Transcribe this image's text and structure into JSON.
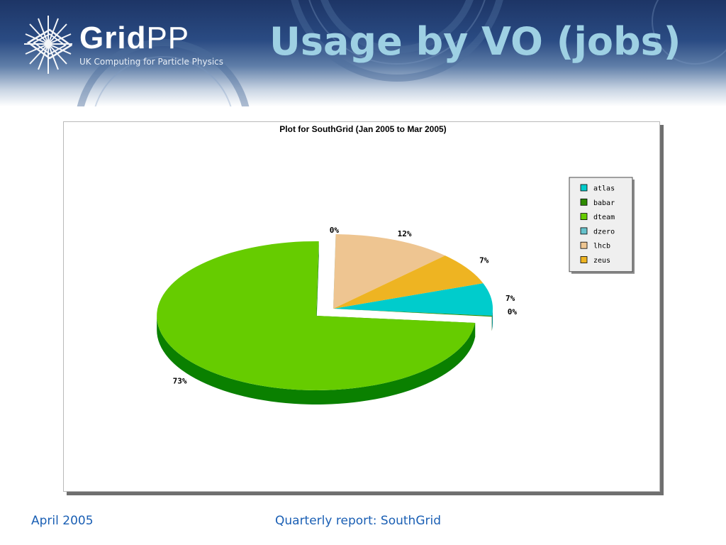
{
  "slide": {
    "title": "Usage by VO (jobs)",
    "brand": {
      "name_bold": "Grid",
      "name_light": "PP",
      "tagline": "UK Computing for Particle Physics"
    },
    "footer": {
      "date": "April 2005",
      "report": "Quarterly report: SouthGrid"
    }
  },
  "colors": {
    "header_dark": "#1d3566",
    "title": "#9ed0e3",
    "footer_text": "#1a5fb4"
  },
  "chart_data": {
    "type": "pie",
    "title": "Plot for SouthGrid (Jan 2005 to Mar 2005)",
    "legend_position": "top-right",
    "slices": [
      {
        "name": "atlas",
        "value": 7,
        "label": "7%",
        "color": "#00cccc",
        "side_color": "#008a8a"
      },
      {
        "name": "babar",
        "value": 0,
        "label": "0%",
        "color": "#2e8b00",
        "side_color": "#1d5a00"
      },
      {
        "name": "dteam",
        "value": 73,
        "label": "73%",
        "color": "#66cc00",
        "side_color": "#0a8000"
      },
      {
        "name": "dzero",
        "value": 0,
        "label": "0%",
        "color": "#66c2cc",
        "side_color": "#2a7a86"
      },
      {
        "name": "lhcb",
        "value": 12,
        "label": "12%",
        "color": "#eec591",
        "side_color": "#a87a48"
      },
      {
        "name": "zeus",
        "value": 7,
        "label": "7%",
        "color": "#eeb422",
        "side_color": "#a87a10"
      }
    ]
  }
}
